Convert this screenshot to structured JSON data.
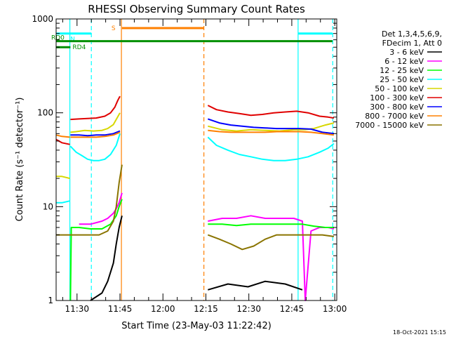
{
  "chart_data": {
    "type": "line",
    "title": "RHESSI Observing Summary Count Rates",
    "xlabel": "Start Time (23-May-03 11:22:42)",
    "ylabel": "Count Rate (s⁻¹ detector⁻¹)",
    "ylog": true,
    "ylim": [
      1,
      1000
    ],
    "xlim_minutes": [
      0,
      98
    ],
    "x_ticks": [
      {
        "label": "11:30",
        "minute": 7.3
      },
      {
        "label": "11:45",
        "minute": 22.3
      },
      {
        "label": "12:00",
        "minute": 37.3
      },
      {
        "label": "12:15",
        "minute": 52.3
      },
      {
        "label": "12:30",
        "minute": 67.3
      },
      {
        "label": "12:45",
        "minute": 82.3
      },
      {
        "label": "13:00",
        "minute": 97.3
      }
    ],
    "y_ticks": [
      "1",
      "10",
      "100",
      "1000"
    ],
    "legend": {
      "position": "right",
      "header": [
        "Det 1,3,4,5,6,9,",
        "FDecim 1, Att 0"
      ],
      "entries": [
        {
          "label": "3 - 6 keV",
          "color": "#000000"
        },
        {
          "label": "6 - 12 keV",
          "color": "#ff00ff"
        },
        {
          "label": "12 - 25 keV",
          "color": "#00ff00"
        },
        {
          "label": "25 - 50 keV",
          "color": "#00ffff"
        },
        {
          "label": "50 - 100 keV",
          "color": "#d7d700"
        },
        {
          "label": "100 - 300 keV",
          "color": "#e00000"
        },
        {
          "label": "300 - 800 keV",
          "color": "#0000ff"
        },
        {
          "label": "800 - 7000 keV",
          "color": "#ff8000"
        },
        {
          "label": "7000 - 15000 keV",
          "color": "#8a7400"
        }
      ]
    },
    "series": [
      {
        "name": "3 - 6 keV",
        "color": "#000000",
        "segments": [
          {
            "x": [
              12,
              16,
              18,
              20,
              21,
              22,
              23
            ],
            "y": [
              1,
              1.2,
              1.6,
              2.5,
              4,
              6,
              8
            ]
          },
          {
            "x": [
              53,
              60,
              67,
              73,
              80,
              86
            ],
            "y": [
              1.3,
              1.5,
              1.4,
              1.6,
              1.5,
              1.3
            ]
          }
        ]
      },
      {
        "name": "6 - 12 keV",
        "color": "#ff00ff",
        "segments": [
          {
            "x": [
              8,
              12,
              16,
              18,
              20,
              21,
              22,
              23
            ],
            "y": [
              6.5,
              6.5,
              7,
              7.5,
              8.5,
              9.5,
              11,
              14
            ]
          },
          {
            "x": [
              53,
              58,
              63,
              68,
              73,
              78,
              83,
              86,
              87,
              89,
              92,
              95,
              97
            ],
            "y": [
              7,
              7.5,
              7.5,
              8,
              7.5,
              7.5,
              7.5,
              7,
              1,
              5.5,
              6,
              6,
              5.8
            ]
          }
        ]
      },
      {
        "name": "12 - 25 keV",
        "color": "#00ff00",
        "segments": [
          {
            "x": [
              5,
              5.3,
              8,
              12,
              16,
              19,
              21,
              22,
              23
            ],
            "y": [
              1,
              6,
              6,
              5.8,
              5.8,
              6.5,
              8,
              10,
              12
            ]
          },
          {
            "x": [
              53,
              58,
              63,
              68,
              73,
              78,
              83,
              86,
              90,
              94,
              97
            ],
            "y": [
              6.5,
              6.5,
              6.3,
              6.5,
              6.5,
              6.5,
              6.5,
              6.5,
              6.2,
              6,
              6
            ]
          }
        ]
      },
      {
        "name": "25 - 50 keV",
        "color": "#00ffff",
        "segments": [
          {
            "x": [
              0,
              2,
              4.8
            ],
            "y": [
              11,
              11,
              11.5
            ]
          },
          {
            "x": [
              5,
              7,
              9,
              11,
              13,
              15,
              17,
              19,
              21,
              22.3
            ],
            "y": [
              44,
              38,
              35,
              32,
              31,
              31,
              32,
              36,
              45,
              60
            ]
          },
          {
            "x": [
              53,
              56,
              60,
              64,
              68,
              72,
              76,
              80,
              84,
              88,
              92,
              95,
              97
            ],
            "y": [
              55,
              45,
              40,
              36,
              34,
              32,
              31,
              31,
              32,
              34,
              38,
              42,
              47
            ]
          }
        ]
      },
      {
        "name": "50 - 100 keV",
        "color": "#d7d700",
        "segments": [
          {
            "x": [
              0,
              2,
              4.8
            ],
            "y": [
              21,
              21,
              20
            ]
          },
          {
            "x": [
              5,
              7,
              10,
              13,
              16,
              18,
              20,
              21,
              22.3
            ],
            "y": [
              62,
              63,
              65,
              64,
              65,
              68,
              75,
              85,
              100
            ]
          },
          {
            "x": [
              53,
              58,
              63,
              68,
              73,
              78,
              83,
              87,
              90,
              94,
              97
            ],
            "y": [
              72,
              66,
              64,
              66,
              65,
              64,
              66,
              66,
              68,
              74,
              78
            ]
          }
        ]
      },
      {
        "name": "100 - 300 keV",
        "color": "#e00000",
        "segments": [
          {
            "x": [
              0,
              2,
              4.8
            ],
            "y": [
              52,
              48,
              46
            ]
          },
          {
            "x": [
              5,
              8,
              11,
              14,
              17,
              19,
              20.5,
              21.5,
              22.3
            ],
            "y": [
              85,
              86,
              87,
              88,
              92,
              100,
              115,
              135,
              150
            ]
          },
          {
            "x": [
              53,
              56,
              60,
              64,
              68,
              72,
              76,
              80,
              84,
              88,
              92,
              95,
              97
            ],
            "y": [
              120,
              108,
              102,
              98,
              94,
              96,
              100,
              102,
              104,
              100,
              92,
              90,
              88
            ]
          }
        ]
      },
      {
        "name": "300 - 800 keV",
        "color": "#0000ff",
        "segments": [
          {
            "x": [
              5,
              8,
              11,
              14,
              17,
              20,
              22.3
            ],
            "y": [
              58,
              58,
              57,
              58,
              58,
              60,
              64
            ]
          },
          {
            "x": [
              53,
              57,
              61,
              65,
              69,
              73,
              77,
              81,
              85,
              89,
              93,
              97
            ],
            "y": [
              86,
              78,
              74,
              72,
              70,
              69,
              68,
              68,
              68,
              67,
              62,
              60
            ]
          }
        ]
      },
      {
        "name": "800 - 7000 keV",
        "color": "#ff8000",
        "segments": [
          {
            "x": [
              0,
              2,
              4.8
            ],
            "y": [
              58,
              56,
              55
            ]
          },
          {
            "x": [
              5,
              8,
              11,
              14,
              17,
              20,
              22.3
            ],
            "y": [
              55,
              55,
              55,
              55,
              56,
              58,
              62
            ]
          },
          {
            "x": [
              53,
              57,
              61,
              65,
              69,
              73,
              77,
              81,
              85,
              89,
              93,
              97
            ],
            "y": [
              65,
              63,
              62,
              62,
              62,
              62,
              63,
              63,
              63,
              62,
              60,
              58
            ]
          }
        ]
      },
      {
        "name": "7000 - 15000 keV",
        "color": "#8a7400",
        "segments": [
          {
            "x": [
              0,
              3,
              6,
              9,
              12,
              15,
              18,
              20,
              21,
              22,
              23
            ],
            "y": [
              5,
              5,
              5,
              5,
              5,
              5,
              5.5,
              7,
              10,
              18,
              28
            ]
          },
          {
            "x": [
              53,
              57,
              61,
              65,
              69,
              73,
              77,
              81,
              85,
              89,
              93,
              97
            ],
            "y": [
              5,
              4.5,
              4,
              3.5,
              3.8,
              4.5,
              5,
              5,
              5,
              5,
              5,
              4.8
            ]
          }
        ]
      }
    ],
    "flags": [
      {
        "label": "N",
        "color": "#00ffff",
        "value": 700,
        "segments": [
          [
            0,
            12.3
          ],
          [
            84.5,
            96.5
          ]
        ]
      },
      {
        "label": "S",
        "color": "#ff8000",
        "value": 800,
        "segments": [
          [
            23,
            51.5
          ]
        ]
      },
      {
        "label": "RD0",
        "color": "#009000",
        "value": 580,
        "segments": [
          [
            0,
            96.5
          ]
        ]
      },
      {
        "label": "RD4",
        "color": "#009000",
        "value": 500,
        "segments": [
          [
            0,
            5
          ]
        ]
      }
    ],
    "vertical_markers": [
      {
        "minute": 4.8,
        "color": "#00ffff",
        "style": "solid"
      },
      {
        "minute": 12.3,
        "color": "#00ffff",
        "style": "dashed"
      },
      {
        "minute": 22.8,
        "color": "#ff8000",
        "style": "solid"
      },
      {
        "minute": 51.6,
        "color": "#ff8000",
        "style": "dashed"
      },
      {
        "minute": 84.5,
        "color": "#00ffff",
        "style": "solid"
      },
      {
        "minute": 96.6,
        "color": "#00ffff",
        "style": "dashed"
      }
    ]
  },
  "footer": {
    "timestamp": "18-Oct-2021 15:15"
  }
}
